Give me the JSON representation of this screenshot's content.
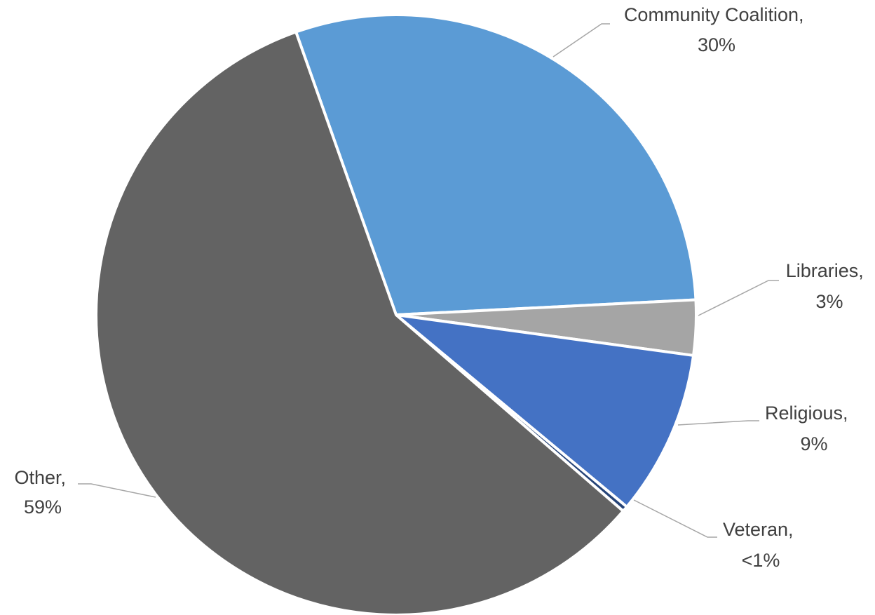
{
  "chart_data": {
    "type": "pie",
    "title": "",
    "series": [
      {
        "values": [
          30,
          3,
          9,
          0.3,
          59
        ]
      }
    ],
    "slices": [
      {
        "name": "Community Coalition",
        "value": 30,
        "value_label": "30%",
        "color": "#5b9bd5"
      },
      {
        "name": "Libraries",
        "value": 3,
        "value_label": "3%",
        "color": "#a5a5a5"
      },
      {
        "name": "Religious",
        "value": 9,
        "value_label": "9%",
        "color": "#4472c4"
      },
      {
        "name": "Veteran",
        "value": 0.3,
        "value_label": "<1%",
        "color": "#264478"
      },
      {
        "name": "Other",
        "value": 59,
        "value_label": "59%",
        "color": "#636363"
      }
    ],
    "labels": [
      {
        "line1": "Community Coalition,",
        "line2": "30%"
      },
      {
        "line1": "Libraries,",
        "line2": "3%"
      },
      {
        "line1": "Religious,",
        "line2": "9%"
      },
      {
        "line1": "Veteran,",
        "line2": "<1%"
      },
      {
        "line1": "Other,",
        "line2": "59%"
      }
    ],
    "legend": "none",
    "grid": false
  }
}
